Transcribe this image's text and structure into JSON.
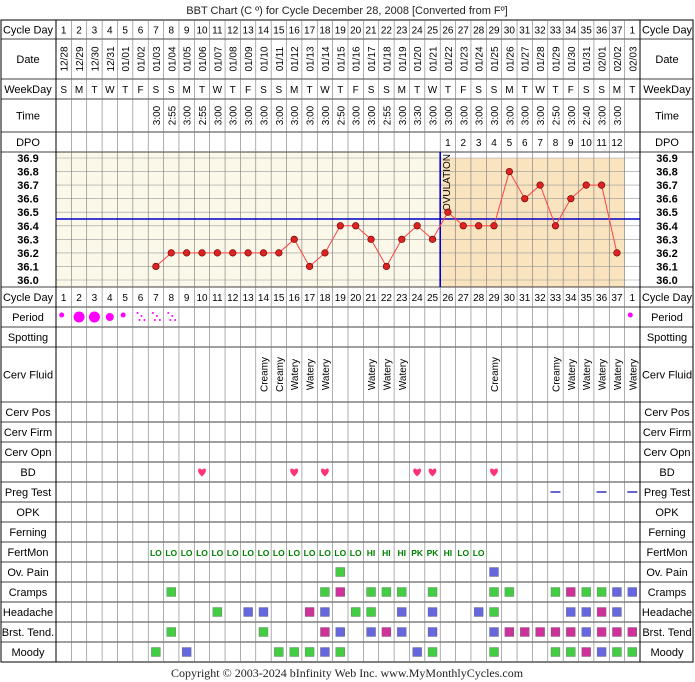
{
  "title": "BBT Chart (C º) for Cycle December 28, 2008  [Converted from Fº]",
  "copyright": "Copyright © 2003-2024 bInfinity Web Inc.    www.MyMonthlyCycles.com",
  "row_labels": {
    "cycle_day": "Cycle Day",
    "date": "Date",
    "weekday": "WeekDay",
    "time": "Time",
    "dpo": "DPO",
    "period": "Period",
    "spotting": "Spotting",
    "cerv_fluid": "Cerv Fluid",
    "cerv_pos": "Cerv Pos",
    "cerv_firm": "Cerv Firm",
    "cerv_opn": "Cerv Opn",
    "bd": "BD",
    "preg_test": "Preg Test",
    "opk": "OPK",
    "ferning": "Ferning",
    "fertmon": "FertMon",
    "ov_pain": "Ov. Pain",
    "cramps": "Cramps",
    "headache": "Headache",
    "brst_tend": "Brst. Tend.",
    "brst_tend_right": "Brst. Tend",
    "moody": "Moody"
  },
  "ovulation_label": "OVULATION",
  "colors": {
    "grid": "#000000",
    "fill_pre": "#fbf8e9",
    "fill_post": "#f9e4bf",
    "coverline": "#0000cc",
    "ovulation_line": "#0000cc",
    "temp_line": "#ff4444",
    "temp_dot": "#dd2222",
    "period": "#ff00ff",
    "heart": "#ff3377",
    "fertmon": "#008000",
    "green_sq": "#44cc44",
    "blue_sq": "#6666dd",
    "magenta_sq": "#cc3399",
    "preg_test": "#6666cc"
  },
  "cycle_days": [
    "1",
    "2",
    "3",
    "4",
    "5",
    "6",
    "7",
    "8",
    "9",
    "10",
    "11",
    "12",
    "13",
    "14",
    "15",
    "16",
    "17",
    "18",
    "19",
    "20",
    "21",
    "22",
    "23",
    "24",
    "25",
    "26",
    "27",
    "28",
    "29",
    "30",
    "31",
    "32",
    "33",
    "34",
    "35",
    "36",
    "37",
    "1"
  ],
  "dates": [
    "12/28",
    "12/29",
    "12/30",
    "12/31",
    "01/01",
    "01/02",
    "01/03",
    "01/04",
    "01/05",
    "01/06",
    "01/07",
    "01/08",
    "01/09",
    "01/10",
    "01/11",
    "01/12",
    "01/13",
    "01/14",
    "01/15",
    "01/16",
    "01/17",
    "01/18",
    "01/19",
    "01/20",
    "01/21",
    "01/22",
    "01/23",
    "01/24",
    "01/25",
    "01/26",
    "01/27",
    "01/28",
    "01/29",
    "01/30",
    "01/31",
    "02/01",
    "02/02",
    "02/03"
  ],
  "weekdays": [
    "S",
    "M",
    "T",
    "W",
    "T",
    "F",
    "S",
    "S",
    "M",
    "T",
    "W",
    "T",
    "F",
    "S",
    "S",
    "M",
    "T",
    "W",
    "T",
    "F",
    "S",
    "S",
    "M",
    "T",
    "W",
    "T",
    "F",
    "S",
    "S",
    "M",
    "T",
    "W",
    "T",
    "F",
    "S",
    "S",
    "M",
    "T"
  ],
  "times": [
    "",
    "",
    "",
    "",
    "",
    "",
    "3:00",
    "2:55",
    "3:00",
    "2:55",
    "3:00",
    "3:00",
    "3:00",
    "3:00",
    "3:00",
    "3:00",
    "3:00",
    "3:00",
    "2:50",
    "3:00",
    "3:00",
    "2:55",
    "3:00",
    "3:30",
    "3:00",
    "3:00",
    "3:00",
    "3:00",
    "3:00",
    "3:00",
    "3:00",
    "3:00",
    "2:50",
    "3:00",
    "2:40",
    "3:00",
    "3:00",
    ""
  ],
  "dpo": [
    "",
    "",
    "",
    "",
    "",
    "",
    "",
    "",
    "",
    "",
    "",
    "",
    "",
    "",
    "",
    "",
    "",
    "",
    "",
    "",
    "",
    "",
    "",
    "",
    "",
    "1",
    "2",
    "3",
    "4",
    "5",
    "6",
    "7",
    "8",
    "9",
    "10",
    "11",
    "12",
    ""
  ],
  "period": [
    "dot",
    "big",
    "big",
    "med",
    "dot",
    "light",
    "light",
    "light",
    "",
    "",
    "",
    "",
    "",
    "",
    "",
    "",
    "",
    "",
    "",
    "",
    "",
    "",
    "",
    "",
    "",
    "",
    "",
    "",
    "",
    "",
    "",
    "",
    "",
    "",
    "",
    "",
    "",
    "dot"
  ],
  "cerv_fluid": [
    "",
    "",
    "",
    "",
    "",
    "",
    "",
    "",
    "",
    "",
    "",
    "",
    "",
    "Creamy",
    "Creamy",
    "Watery",
    "Watery",
    "Watery",
    "",
    "",
    "Watery",
    "Watery",
    "Watery",
    "",
    "",
    "",
    "",
    "",
    "Creamy",
    "",
    "",
    "",
    "Creamy",
    "Watery",
    "Watery",
    "Watery",
    "Watery",
    "Watery"
  ],
  "bd": [
    10,
    16,
    18,
    24,
    25,
    29
  ],
  "preg_test": [
    33,
    36,
    38
  ],
  "fertmon": [
    "",
    "",
    "",
    "",
    "",
    "",
    "LO",
    "LO",
    "LO",
    "LO",
    "LO",
    "LO",
    "LO",
    "LO",
    "LO",
    "LO",
    "LO",
    "LO",
    "LO",
    "LO",
    "HI",
    "HI",
    "HI",
    "PK",
    "PK",
    "HI",
    "LO",
    "LO",
    "",
    "",
    "",
    "",
    "",
    "",
    "",
    "",
    "",
    ""
  ],
  "ov_pain": {
    "19": "green",
    "29": "blue"
  },
  "cramps": {
    "8": "green",
    "18": "green",
    "19": "magenta",
    "21": "green",
    "22": "green",
    "23": "green",
    "25": "green",
    "29": "green",
    "30": "green",
    "33": "green",
    "34": "magenta",
    "35": "green",
    "36": "green",
    "37": "blue",
    "38": "blue"
  },
  "headache": {
    "11": "green",
    "13": "blue",
    "14": "blue",
    "17": "magenta",
    "18": "blue",
    "20": "green",
    "21": "green",
    "23": "blue",
    "25": "blue",
    "28": "blue",
    "29": "green",
    "34": "blue",
    "35": "blue",
    "36": "magenta",
    "37": "blue"
  },
  "brst_tend": {
    "8": "green",
    "14": "green",
    "18": "magenta",
    "19": "blue",
    "21": "blue",
    "22": "magenta",
    "23": "blue",
    "25": "blue",
    "29": "blue",
    "30": "magenta",
    "31": "magenta",
    "32": "magenta",
    "33": "magenta",
    "34": "magenta",
    "35": "blue",
    "36": "magenta",
    "37": "magenta",
    "38": "magenta"
  },
  "moody": {
    "7": "green",
    "9": "blue",
    "15": "green",
    "16": "green",
    "17": "green",
    "18": "blue",
    "19": "green",
    "24": "blue",
    "25": "green",
    "29": "green",
    "33": "green",
    "34": "green",
    "35": "magenta",
    "36": "blue",
    "37": "green",
    "38": "green"
  },
  "chart_data": {
    "type": "line",
    "x": [
      7,
      8,
      9,
      10,
      11,
      12,
      13,
      14,
      15,
      16,
      17,
      18,
      19,
      20,
      21,
      22,
      23,
      24,
      25,
      26,
      27,
      28,
      29,
      30,
      31,
      32,
      33,
      34,
      35,
      36,
      37
    ],
    "values": [
      36.1,
      36.2,
      36.2,
      36.2,
      36.2,
      36.2,
      36.2,
      36.2,
      36.2,
      36.3,
      36.1,
      36.2,
      36.4,
      36.4,
      36.3,
      36.1,
      36.3,
      36.4,
      36.3,
      36.5,
      36.4,
      36.4,
      36.4,
      36.8,
      36.6,
      36.7,
      36.4,
      36.6,
      36.7,
      36.7,
      36.2
    ],
    "y_ticks": [
      "36.9",
      "36.8",
      "36.7",
      "36.6",
      "36.5",
      "36.4",
      "36.3",
      "36.2",
      "36.1",
      "36.0"
    ],
    "ylim": [
      36.0,
      36.9
    ],
    "coverline": 36.45,
    "ovulation_day": 25,
    "ylabel": "",
    "xlabel": "Cycle Day"
  }
}
